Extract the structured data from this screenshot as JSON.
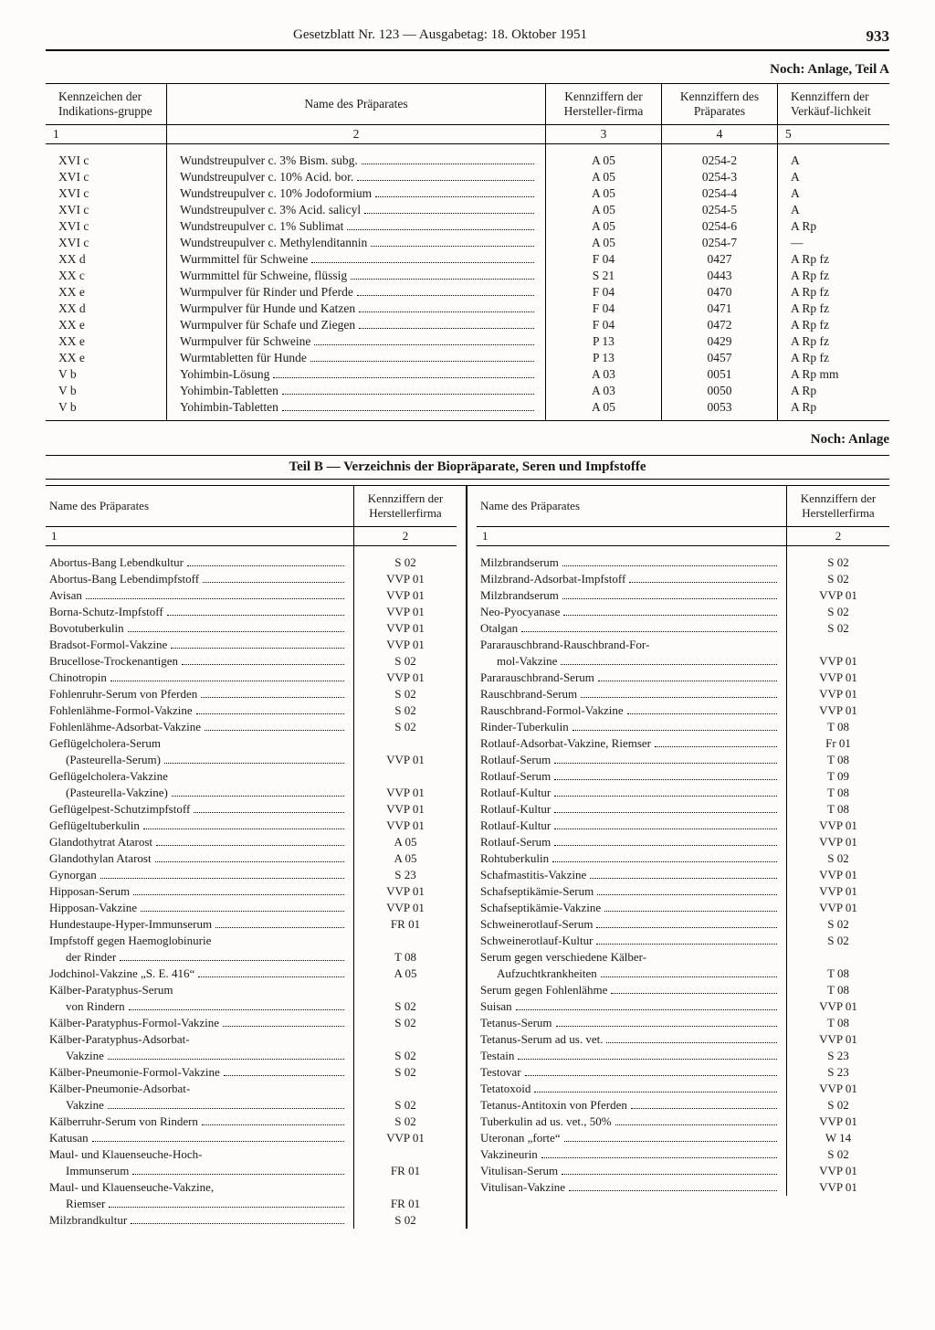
{
  "header": {
    "title": "Gesetzblatt Nr. 123 — Ausgabetag: 18. Oktober 1951",
    "page_number": "933"
  },
  "captions": {
    "teilA_continued": "Noch: Anlage, Teil A",
    "teilB_continued": "Noch: Anlage",
    "teilB_title": "Teil B   —   Verzeichnis der Biopräparate, Seren und Impfstoffe"
  },
  "tableA": {
    "columns": {
      "c1": "Kennzeichen der Indikations-gruppe",
      "c2": "Name des Präparates",
      "c3": "Kennziffern der Hersteller-firma",
      "c4": "Kennziffern des Präparates",
      "c5": "Kennziffern der Verkäuf-lichkeit",
      "n1": "1",
      "n2": "2",
      "n3": "3",
      "n4": "4",
      "n5": "5"
    },
    "rows": [
      {
        "c1": "XVI c",
        "c2": "Wundstreupulver c.  3%  Bism. subg.",
        "c3": "A 05",
        "c4": "0254-2",
        "c5": "A"
      },
      {
        "c1": "XVI c",
        "c2": "Wundstreupulver c. 10%  Acid. bor.",
        "c3": "A 05",
        "c4": "0254-3",
        "c5": "A"
      },
      {
        "c1": "XVI c",
        "c2": "Wundstreupulver c. 10%  Jodoformium",
        "c3": "A 05",
        "c4": "0254-4",
        "c5": "A"
      },
      {
        "c1": "XVI c",
        "c2": "Wundstreupulver c.  3%  Acid. salicyl",
        "c3": "A 05",
        "c4": "0254-5",
        "c5": "A"
      },
      {
        "c1": "XVI c",
        "c2": "Wundstreupulver c.  1%  Sublimat",
        "c3": "A 05",
        "c4": "0254-6",
        "c5": "A Rp"
      },
      {
        "c1": "XVI c",
        "c2": "Wundstreupulver c. Methylenditannin",
        "c3": "A 05",
        "c4": "0254-7",
        "c5": "—"
      },
      {
        "c1": "XX d",
        "c2": "Wurmmittel für Schweine",
        "c3": "F 04",
        "c4": "0427",
        "c5": "A Rp fz"
      },
      {
        "c1": "XX c",
        "c2": "Wurmmittel für Schweine, flüssig",
        "c3": "S 21",
        "c4": "0443",
        "c5": "A Rp fz"
      },
      {
        "c1": "XX e",
        "c2": "Wurmpulver für Rinder und Pferde",
        "c3": "F 04",
        "c4": "0470",
        "c5": "A Rp fz"
      },
      {
        "c1": "XX d",
        "c2": "Wurmpulver für Hunde und Katzen",
        "c3": "F 04",
        "c4": "0471",
        "c5": "A Rp fz"
      },
      {
        "c1": "XX e",
        "c2": "Wurmpulver für Schafe und Ziegen",
        "c3": "F 04",
        "c4": "0472",
        "c5": "A Rp fz"
      },
      {
        "c1": "XX e",
        "c2": "Wurmpulver für Schweine",
        "c3": "P 13",
        "c4": "0429",
        "c5": "A Rp fz"
      },
      {
        "c1": "XX e",
        "c2": "Wurmtabletten für Hunde",
        "c3": "P 13",
        "c4": "0457",
        "c5": "A Rp fz"
      },
      {
        "c1": "V b",
        "c2": "Yohimbin-Lösung",
        "c3": "A 03",
        "c4": "0051",
        "c5": "A Rp mm"
      },
      {
        "c1": "V b",
        "c2": "Yohimbin-Tabletten",
        "c3": "A 03",
        "c4": "0050",
        "c5": "A Rp"
      },
      {
        "c1": "V b",
        "c2": "Yohimbin-Tabletten",
        "c3": "A 05",
        "c4": "0053",
        "c5": "A Rp"
      }
    ]
  },
  "tableB": {
    "columns": {
      "c1": "Name des Präparates",
      "c2": "Kennziffern der Herstellerfirma",
      "n1": "1",
      "n2": "2"
    },
    "left": [
      {
        "name": "Abortus-Bang Lebendkultur",
        "code": "S 02"
      },
      {
        "name": "Abortus-Bang Lebendimpfstoff",
        "code": "VVP 01"
      },
      {
        "name": "Avisan",
        "code": "VVP 01"
      },
      {
        "name": "Borna-Schutz-Impfstoff",
        "code": "VVP 01"
      },
      {
        "name": "Bovotuberkulin",
        "code": "VVP 01"
      },
      {
        "name": "Bradsot-Formol-Vakzine",
        "code": "VVP 01"
      },
      {
        "name": "Brucellose-Trockenantigen",
        "code": "S 02"
      },
      {
        "name": "Chinotropin",
        "code": "VVP 01"
      },
      {
        "name": "Fohlenruhr-Serum von Pferden",
        "code": "S 02"
      },
      {
        "name": "Fohlenlähme-Formol-Vakzine",
        "code": "S 02"
      },
      {
        "name": "Fohlenlähme-Adsorbat-Vakzine",
        "code": "S 02"
      },
      {
        "name": "Geflügelcholera-Serum",
        "code": "",
        "cont": true
      },
      {
        "name": "(Pasteurella-Serum)",
        "code": "VVP 01",
        "indent": true
      },
      {
        "name": "Geflügelcholera-Vakzine",
        "code": "",
        "cont": true
      },
      {
        "name": "(Pasteurella-Vakzine)",
        "code": "VVP 01",
        "indent": true
      },
      {
        "name": "Geflügelpest-Schutzimpfstoff",
        "code": "VVP 01"
      },
      {
        "name": "Geflügeltuberkulin",
        "code": "VVP 01"
      },
      {
        "name": "Glandothytrat Atarost",
        "code": "A 05"
      },
      {
        "name": "Glandothylan Atarost",
        "code": "A 05"
      },
      {
        "name": "Gynorgan",
        "code": "S 23"
      },
      {
        "name": "Hipposan-Serum",
        "code": "VVP 01"
      },
      {
        "name": "Hipposan-Vakzine",
        "code": "VVP 01"
      },
      {
        "name": "Hundestaupe-Hyper-Immunserum",
        "code": "FR 01"
      },
      {
        "name": "Impfstoff gegen Haemoglobinurie",
        "code": "",
        "cont": true
      },
      {
        "name": "der Rinder",
        "code": "T 08",
        "indent": true
      },
      {
        "name": "Jodchinol-Vakzine „S. E. 416“",
        "code": "A 05"
      },
      {
        "name": "Kälber-Paratyphus-Serum",
        "code": "",
        "cont": true
      },
      {
        "name": "von Rindern",
        "code": "S 02",
        "indent": true
      },
      {
        "name": "Kälber-Paratyphus-Formol-Vakzine",
        "code": "S 02"
      },
      {
        "name": "Kälber-Paratyphus-Adsorbat-",
        "code": "",
        "cont": true
      },
      {
        "name": "Vakzine",
        "code": "S 02",
        "indent": true
      },
      {
        "name": "Kälber-Pneumonie-Formol-Vakzine",
        "code": "S 02"
      },
      {
        "name": "Kälber-Pneumonie-Adsorbat-",
        "code": "",
        "cont": true
      },
      {
        "name": "Vakzine",
        "code": "S 02",
        "indent": true
      },
      {
        "name": "Kälberruhr-Serum von Rindern",
        "code": "S 02"
      },
      {
        "name": "Katusan",
        "code": "VVP 01"
      },
      {
        "name": "Maul- und Klauenseuche-Hoch-",
        "code": "",
        "cont": true
      },
      {
        "name": "Immunserum",
        "code": "FR 01",
        "indent": true
      },
      {
        "name": "Maul- und Klauenseuche-Vakzine,",
        "code": "",
        "cont": true
      },
      {
        "name": "Riemser",
        "code": "FR 01",
        "indent": true
      },
      {
        "name": "Milzbrandkultur",
        "code": "S 02"
      }
    ],
    "right": [
      {
        "name": "Milzbrandserum",
        "code": "S 02"
      },
      {
        "name": "Milzbrand-Adsorbat-Impfstoff",
        "code": "S 02"
      },
      {
        "name": "Milzbrandserum",
        "code": "VVP 01"
      },
      {
        "name": "Neo-Pyocyanase",
        "code": "S 02"
      },
      {
        "name": "Otalgan",
        "code": "S 02"
      },
      {
        "name": "Pararauschbrand-Rauschbrand-For-",
        "code": "",
        "cont": true
      },
      {
        "name": "mol-Vakzine",
        "code": "VVP 01",
        "indent": true
      },
      {
        "name": "Pararauschbrand-Serum",
        "code": "VVP 01"
      },
      {
        "name": "Rauschbrand-Serum",
        "code": "VVP 01"
      },
      {
        "name": "Rauschbrand-Formol-Vakzine",
        "code": "VVP 01"
      },
      {
        "name": "Rinder-Tuberkulin",
        "code": "T 08"
      },
      {
        "name": "Rotlauf-Adsorbat-Vakzine, Riemser",
        "code": "Fr 01"
      },
      {
        "name": "Rotlauf-Serum",
        "code": "T 08"
      },
      {
        "name": "Rotlauf-Serum",
        "code": "T 09"
      },
      {
        "name": "Rotlauf-Kultur",
        "code": "T 08"
      },
      {
        "name": "Rotlauf-Kultur",
        "code": "T 08"
      },
      {
        "name": "Rotlauf-Kultur",
        "code": "VVP 01"
      },
      {
        "name": "Rotlauf-Serum",
        "code": "VVP 01"
      },
      {
        "name": "Rohtuberkulin",
        "code": "S 02"
      },
      {
        "name": "Schafmastitis-Vakzine",
        "code": "VVP 01"
      },
      {
        "name": "Schafseptikämie-Serum",
        "code": "VVP 01"
      },
      {
        "name": "Schafseptikämie-Vakzine",
        "code": "VVP 01"
      },
      {
        "name": "Schweinerotlauf-Serum",
        "code": "S 02"
      },
      {
        "name": "Schweinerotlauf-Kultur",
        "code": "S 02"
      },
      {
        "name": "Serum gegen verschiedene Kälber-",
        "code": "",
        "cont": true
      },
      {
        "name": "Aufzuchtkrankheiten",
        "code": "T 08",
        "indent": true
      },
      {
        "name": "Serum gegen Fohlenlähme",
        "code": "T 08"
      },
      {
        "name": "Suisan",
        "code": "VVP 01"
      },
      {
        "name": "Tetanus-Serum",
        "code": "T 08"
      },
      {
        "name": "Tetanus-Serum ad us. vet.",
        "code": "VVP 01"
      },
      {
        "name": "Testain",
        "code": "S 23"
      },
      {
        "name": "Testovar",
        "code": "S 23"
      },
      {
        "name": "Tetatoxoid",
        "code": "VVP 01"
      },
      {
        "name": "Tetanus-Antitoxin von Pferden",
        "code": "S 02"
      },
      {
        "name": "Tuberkulin ad us. vet., 50%",
        "code": "VVP 01"
      },
      {
        "name": "Uteronan „forte“",
        "code": "W 14"
      },
      {
        "name": "Vakzineurin",
        "code": "S 02"
      },
      {
        "name": "Vitulisan-Serum",
        "code": "VVP 01"
      },
      {
        "name": "Vitulisan-Vakzine",
        "code": "VVP 01"
      }
    ]
  }
}
